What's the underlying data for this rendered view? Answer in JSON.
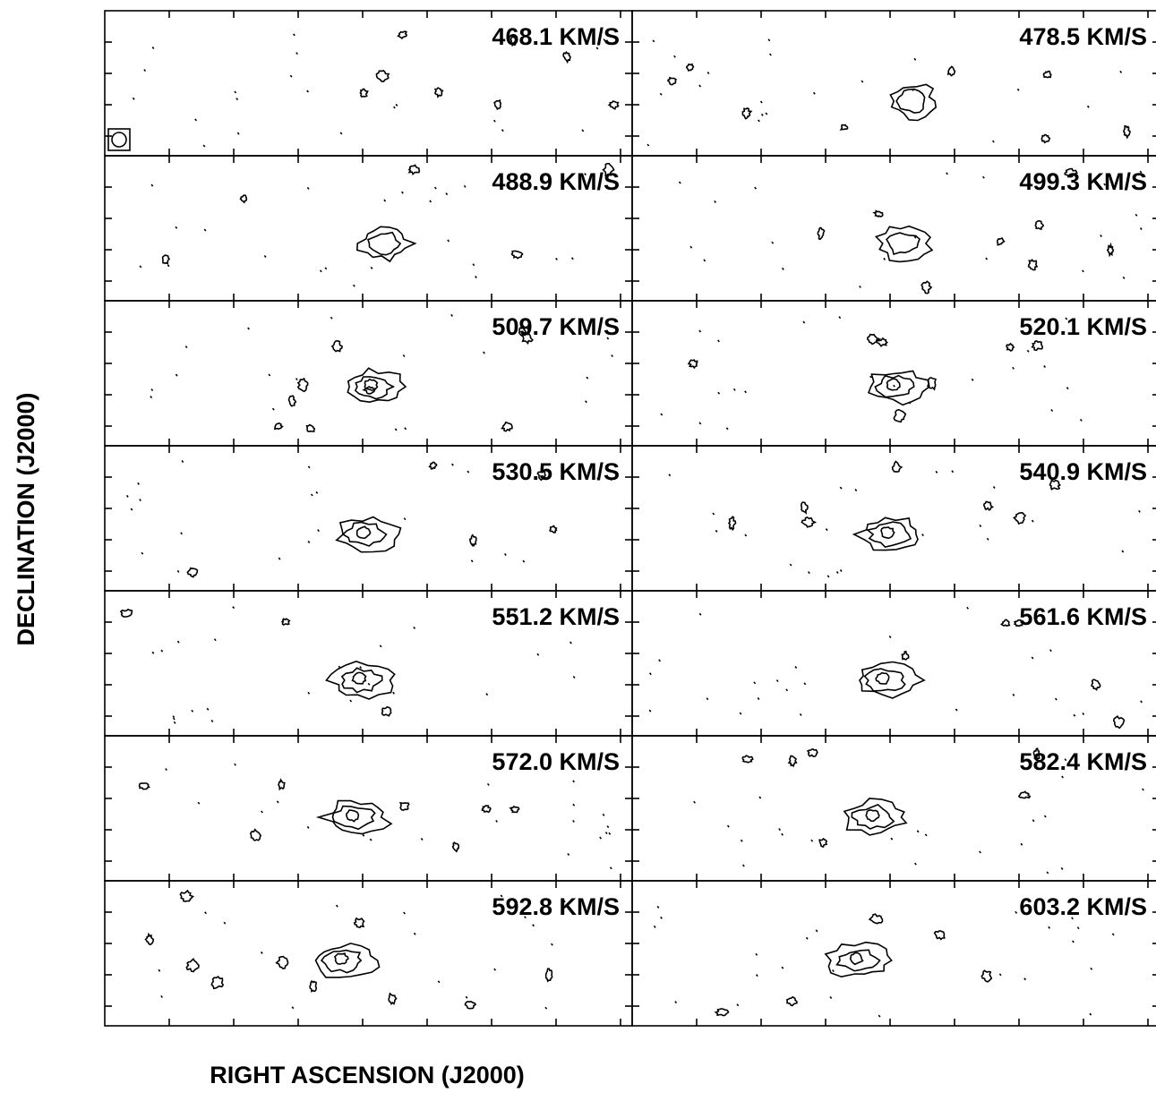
{
  "panels": [
    {
      "label": "468.1 KM/S"
    },
    {
      "label": "478.5 KM/S"
    },
    {
      "label": "488.9 KM/S"
    },
    {
      "label": "499.3 KM/S"
    },
    {
      "label": "509.7 KM/S"
    },
    {
      "label": "520.1 KM/S"
    },
    {
      "label": "530.5 KM/S"
    },
    {
      "label": "540.9 KM/S"
    },
    {
      "label": "551.2 KM/S"
    },
    {
      "label": "561.6 KM/S"
    },
    {
      "label": "572.0 KM/S"
    },
    {
      "label": "582.4 KM/S"
    },
    {
      "label": "592.8 KM/S"
    },
    {
      "label": "603.2 KM/S"
    }
  ],
  "axes": {
    "x_label": "RIGHT ASCENSION (J2000)",
    "y_label": "DECLINATION (J2000)"
  }
}
